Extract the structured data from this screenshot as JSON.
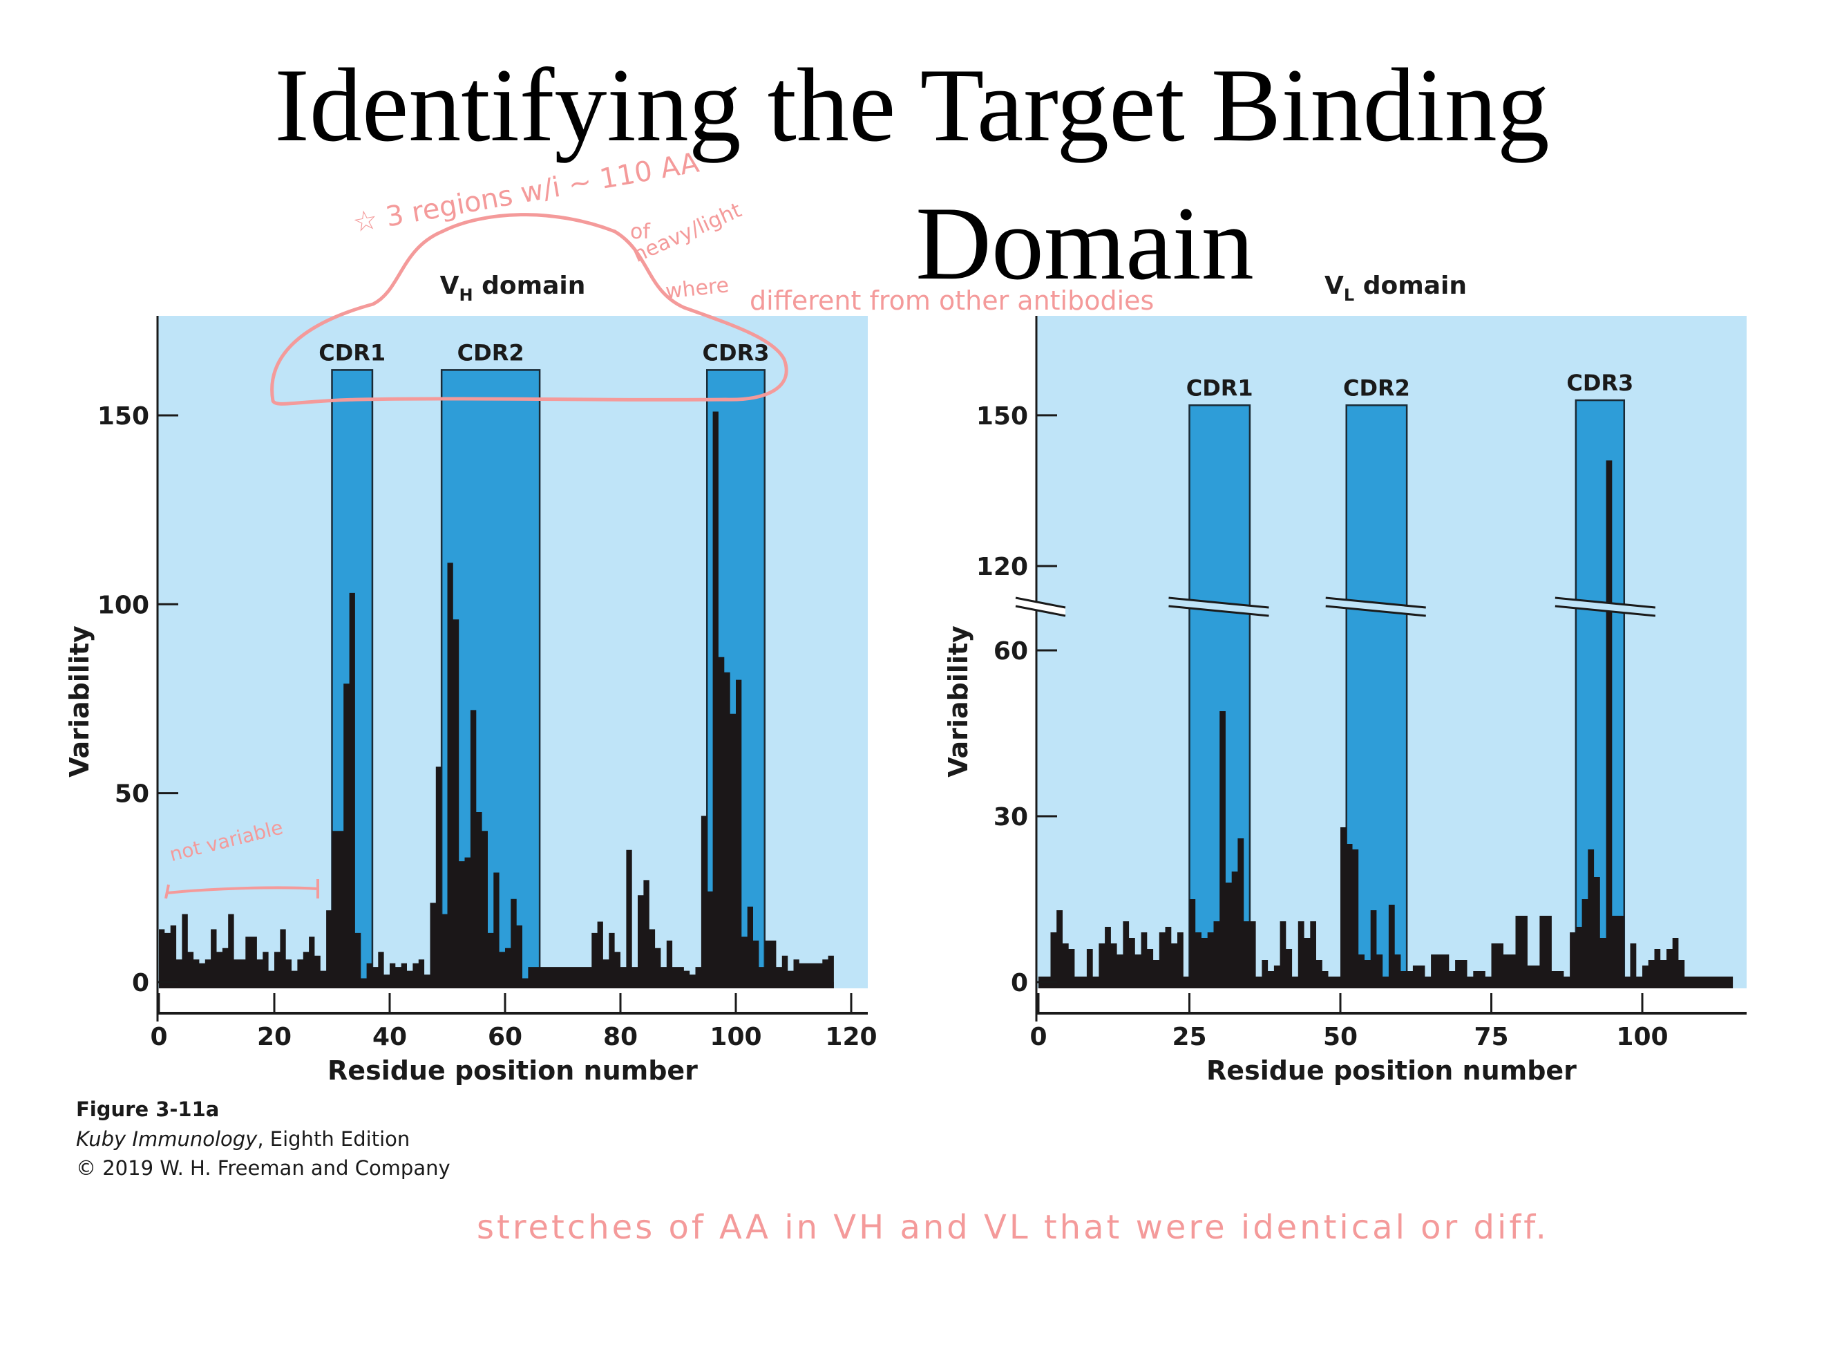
{
  "slide": {
    "title_line1": "Identifying the Target Binding",
    "title_line2": "Domain"
  },
  "caption": {
    "figure": "Figure 3-11a",
    "book_italic": "Kuby Immunology",
    "edition": ", Eighth Edition",
    "copyright": "© 2019 W. H. Freeman and Company"
  },
  "annotations": {
    "star_note": "☆ 3 regions w/i ~ 110 AA",
    "of": "of",
    "heavy_light": "heavy/light",
    "where": "where",
    "different": "different from other antibodies",
    "not_variable": "not variable",
    "bottom_note": "stretches of AA in VH and VL that were identical or diff."
  },
  "colors": {
    "plot_bg": "#bfe4f8",
    "cdr_fill": "#2e9dd8",
    "bar": "#1b1718",
    "annotation": "#f49a9a",
    "axis": "#1a1a1a"
  },
  "chart_data": [
    {
      "type": "bar",
      "title": "VH domain",
      "title_main": "V",
      "title_sub": "H",
      "title_rest": " domain",
      "xlabel": "Residue position number",
      "ylabel": "Variability",
      "xlim": [
        0,
        125
      ],
      "ylim": [
        0,
        175
      ],
      "xticks": [
        0,
        20,
        40,
        60,
        80,
        100,
        120
      ],
      "yticks": [
        0,
        50,
        100,
        150
      ],
      "cdr_regions": [
        {
          "label": "CDR1",
          "start": 30,
          "end": 37,
          "top": 162
        },
        {
          "label": "CDR2",
          "start": 49,
          "end": 66,
          "top": 162
        },
        {
          "label": "CDR3",
          "start": 95,
          "end": 105,
          "top": 162
        }
      ],
      "x": [
        1,
        2,
        3,
        4,
        5,
        6,
        7,
        8,
        9,
        10,
        11,
        12,
        13,
        14,
        15,
        16,
        17,
        18,
        19,
        20,
        21,
        22,
        23,
        24,
        25,
        26,
        27,
        28,
        29,
        30,
        31,
        32,
        33,
        34,
        35,
        36,
        37,
        38,
        39,
        40,
        41,
        42,
        43,
        44,
        45,
        46,
        47,
        48,
        49,
        50,
        51,
        52,
        53,
        54,
        55,
        56,
        57,
        58,
        59,
        60,
        61,
        62,
        63,
        64,
        65,
        66,
        67,
        68,
        69,
        70,
        71,
        72,
        73,
        74,
        75,
        76,
        77,
        78,
        79,
        80,
        81,
        82,
        83,
        84,
        85,
        86,
        87,
        88,
        89,
        90,
        91,
        92,
        93,
        94,
        95,
        96,
        97,
        98,
        99,
        100,
        101,
        102,
        103,
        104,
        105,
        106,
        107,
        108,
        109,
        110,
        111,
        112,
        113,
        114,
        115,
        116,
        117
      ],
      "values": [
        14,
        13,
        15,
        6,
        18,
        8,
        6,
        5,
        6,
        14,
        8,
        9,
        18,
        6,
        6,
        12,
        12,
        6,
        8,
        3,
        8,
        14,
        6,
        3,
        6,
        8,
        12,
        7,
        3,
        19,
        40,
        40,
        79,
        103,
        13,
        1,
        5,
        4,
        8,
        2,
        5,
        4,
        5,
        3,
        5,
        6,
        2,
        21,
        57,
        18,
        111,
        96,
        32,
        33,
        72,
        45,
        40,
        13,
        29,
        8,
        9,
        22,
        15,
        1,
        4,
        4,
        4,
        4,
        4,
        4,
        4,
        4,
        4,
        4,
        4,
        13,
        16,
        6,
        13,
        8,
        4,
        35,
        4,
        23,
        27,
        14,
        9,
        4,
        11,
        4,
        4,
        3,
        2,
        4,
        44,
        24,
        151,
        86,
        82,
        71,
        80,
        12,
        20,
        11,
        4,
        11,
        11,
        4,
        7,
        3,
        6,
        5,
        5,
        5,
        5,
        6,
        7
      ]
    },
    {
      "type": "bar",
      "title": "VL domain",
      "title_main": "V",
      "title_sub": "L",
      "title_rest": " domain",
      "xlabel": "Residue position number",
      "ylabel": "Variability",
      "xlim": [
        0,
        118
      ],
      "ylim": [
        0,
        165
      ],
      "y_axis_break": [
        70,
        110
      ],
      "xticks": [
        0,
        25,
        50,
        75,
        100
      ],
      "yticks": [
        0,
        30,
        60,
        120,
        150
      ],
      "cdr_regions": [
        {
          "label": "CDR1",
          "start": 25,
          "end": 35,
          "top": 152
        },
        {
          "label": "CDR2",
          "start": 51,
          "end": 61,
          "top": 152
        },
        {
          "label": "CDR3",
          "start": 89,
          "end": 97,
          "top": 153
        }
      ],
      "x": [
        1,
        2,
        3,
        4,
        5,
        6,
        7,
        8,
        9,
        10,
        11,
        12,
        13,
        14,
        15,
        16,
        17,
        18,
        19,
        20,
        21,
        22,
        23,
        24,
        25,
        26,
        27,
        28,
        29,
        30,
        31,
        32,
        33,
        34,
        35,
        36,
        37,
        38,
        39,
        40,
        41,
        42,
        43,
        44,
        45,
        46,
        47,
        48,
        49,
        50,
        51,
        52,
        53,
        54,
        55,
        56,
        57,
        58,
        59,
        60,
        61,
        62,
        63,
        64,
        65,
        66,
        67,
        68,
        69,
        70,
        71,
        72,
        73,
        74,
        75,
        76,
        77,
        78,
        79,
        80,
        81,
        82,
        83,
        84,
        85,
        86,
        87,
        88,
        89,
        90,
        91,
        92,
        93,
        94,
        95,
        96,
        97,
        98,
        99,
        100,
        101,
        102,
        103,
        104,
        105,
        106,
        107,
        108,
        109,
        110,
        111,
        112,
        113,
        114,
        115
      ],
      "values": [
        1,
        1,
        9,
        13,
        7,
        6,
        1,
        1,
        6,
        1,
        7,
        10,
        7,
        5,
        11,
        8,
        5,
        9,
        6,
        4,
        9,
        10,
        7,
        9,
        1,
        15,
        9,
        8,
        9,
        11,
        49,
        18,
        20,
        26,
        11,
        11,
        1,
        4,
        2,
        3,
        11,
        6,
        1,
        11,
        8,
        11,
        4,
        2,
        1,
        1,
        28,
        25,
        24,
        5,
        4,
        13,
        5,
        1,
        14,
        5,
        2,
        2,
        3,
        3,
        1,
        5,
        5,
        5,
        2,
        4,
        4,
        1,
        2,
        2,
        1,
        7,
        7,
        5,
        5,
        12,
        12,
        3,
        3,
        12,
        12,
        2,
        2,
        1,
        9,
        10,
        15,
        24,
        19,
        8,
        141,
        12,
        12,
        1,
        7,
        1,
        3,
        4,
        6,
        4,
        6,
        8,
        4,
        1,
        1,
        1,
        1,
        1,
        1,
        1,
        1
      ]
    }
  ]
}
